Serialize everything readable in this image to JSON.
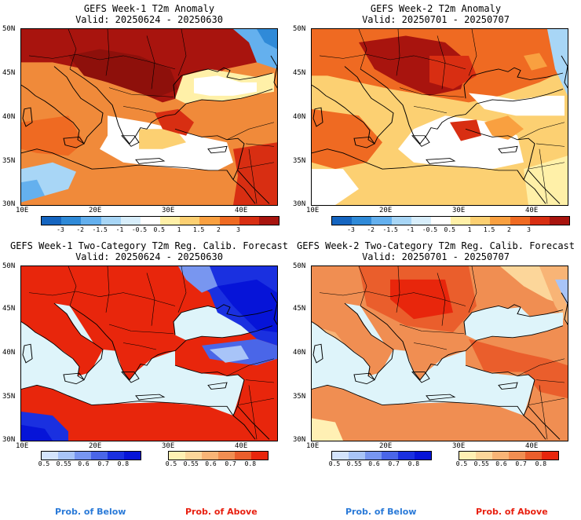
{
  "panels": [
    {
      "title": "GEFS Week-1 T2m Anomaly",
      "valid": "Valid: 20250624 - 20250630"
    },
    {
      "title": "GEFS Week-2 T2m Anomaly",
      "valid": "Valid: 20250701 - 20250707"
    },
    {
      "title": "GEFS Week-1 Two-Category T2m Reg. Calib. Forecast",
      "valid": "Valid: 20250624 - 20250630"
    },
    {
      "title": "GEFS Week-2 Two-Category T2m Reg. Calib. Forecast",
      "valid": "Valid: 20250701 - 20250707"
    }
  ],
  "axes": {
    "lat_labels": [
      "50N",
      "45N",
      "40N",
      "35N",
      "30N"
    ],
    "lon_labels": [
      "10E",
      "20E",
      "30E",
      "40E"
    ]
  },
  "anomaly_colorbar": {
    "labels": [
      "-3",
      "-2",
      "-1.5",
      "-1",
      "-0.5",
      "0.5",
      "1",
      "1.5",
      "2",
      "3"
    ],
    "colors": [
      "#1565c0",
      "#2f8ad8",
      "#64b0ee",
      "#a8d6f6",
      "#d8eefb",
      "#ffffff",
      "#fff0a8",
      "#fcd072",
      "#f9a040",
      "#ef6a22",
      "#d82e12",
      "#a8140e"
    ]
  },
  "prob_below_colorbar": {
    "labels": [
      "0.5",
      "0.55",
      "0.6",
      "0.7",
      "0.8"
    ],
    "colors": [
      "#d4e4fc",
      "#a8c4f8",
      "#7896f0",
      "#4a66e8",
      "#1a30e0",
      "#0614d8"
    ]
  },
  "prob_above_colorbar": {
    "labels": [
      "0.5",
      "0.55",
      "0.6",
      "0.7",
      "0.8"
    ],
    "colors": [
      "#fff0b4",
      "#fcd69a",
      "#f8b476",
      "#f08e52",
      "#ea5e2c",
      "#e8260c"
    ]
  },
  "legend": {
    "below": "Prob. of Below",
    "above": "Prob. of Above"
  },
  "colors": {
    "below_text": "#2a7ad8",
    "above_text": "#e82010",
    "land_neutral": "#ffffff",
    "sea": "#def4fa"
  }
}
